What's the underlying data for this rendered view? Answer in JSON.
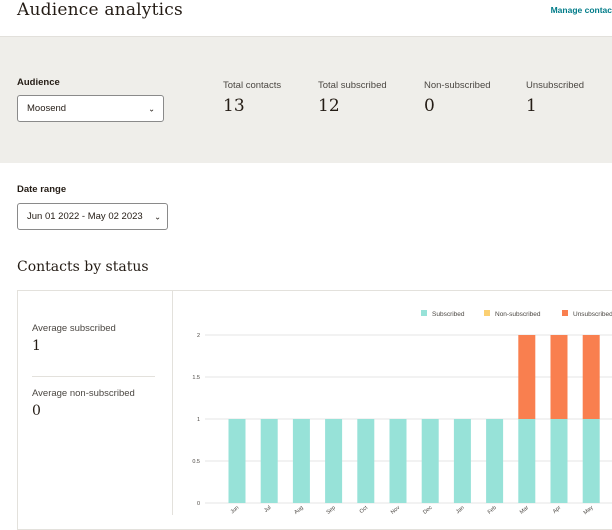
{
  "header": {
    "title": "Audience analytics",
    "manage_link": "Manage contac"
  },
  "audience": {
    "label": "Audience",
    "selected": "Moosend"
  },
  "stats": [
    {
      "label": "Total contacts",
      "value": "13"
    },
    {
      "label": "Total subscribed",
      "value": "12"
    },
    {
      "label": "Non-subscribed",
      "value": "0"
    },
    {
      "label": "Unsubscribed",
      "value": "1"
    }
  ],
  "date_range": {
    "label": "Date range",
    "selected": "Jun 01 2022 - May 02 2023"
  },
  "section": {
    "title": "Contacts by status"
  },
  "averages": [
    {
      "label": "Average subscribed",
      "value": "1"
    },
    {
      "label": "Average non-subscribed",
      "value": "0"
    }
  ],
  "colors": {
    "subscribed": "#97e2d8",
    "non_subscribed": "#fbd073",
    "unsubscribed": "#f97f4f"
  },
  "chart_data": {
    "type": "bar",
    "stacked": true,
    "categories": [
      "Jun",
      "Jul",
      "Aug",
      "Sep",
      "Oct",
      "Nov",
      "Dec",
      "Jan",
      "Feb",
      "Mar",
      "Apr",
      "May"
    ],
    "series": [
      {
        "name": "Subscribed",
        "values": [
          1,
          1,
          1,
          1,
          1,
          1,
          1,
          1,
          1,
          1,
          1,
          1
        ]
      },
      {
        "name": "Non-subscribed",
        "values": [
          0,
          0,
          0,
          0,
          0,
          0,
          0,
          0,
          0,
          0,
          0,
          0
        ]
      },
      {
        "name": "Unsubscribed",
        "values": [
          0,
          0,
          0,
          0,
          0,
          0,
          0,
          0,
          0,
          1,
          1,
          1
        ]
      }
    ],
    "yticks": [
      "0",
      "0.5",
      "1",
      "1.5",
      "2"
    ],
    "ylim": [
      0,
      2
    ],
    "grid": true,
    "legend": "top-right"
  }
}
